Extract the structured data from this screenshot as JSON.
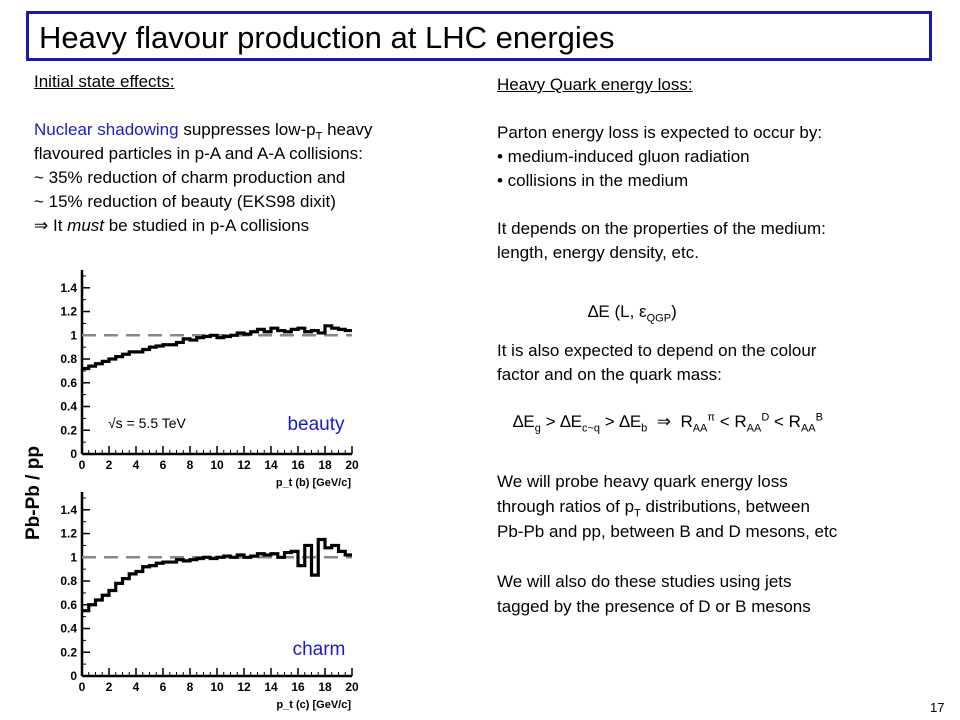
{
  "title": "Heavy flavour production at LHC energies",
  "left": {
    "heading": "Initial state effects:",
    "line1_highlight": "Nuclear shadowing",
    "line1_rest": " suppresses low-p",
    "line1_sub": "T",
    "line1_end": " heavy",
    "line2": "flavoured particles in p-A and A-A collisions:",
    "line3": "~ 35% reduction of charm production and",
    "line4": "~ 15% reduction of beauty (EKS98 dixit)",
    "line5_arrow": "⇒",
    "line5_a": " It ",
    "line5_em": "must",
    "line5_b": " be studied in p-A collisions"
  },
  "right": {
    "heading": "Heavy Quark energy loss:",
    "p1": "Parton energy loss is expected to occur by:",
    "b1": "• medium-induced gluon radiation",
    "b2": "• collisions in the medium",
    "p2a": "It depends on the properties of the medium:",
    "p2b": "length, energy density, etc.",
    "f1_delta": "∆E (L, ",
    "f1_eps": "ε",
    "f1_sub": "QGP",
    "f1_close": ")",
    "p3a": "It is also expected to depend on the colour",
    "p3b": "factor and on the quark mass:",
    "f2": {
      "d1": "∆E",
      "s1": "g",
      "gt1": " > ∆E",
      "s2": "c~q",
      "gt2": " > ∆E",
      "s3": "b",
      "arrow": "  ⇒  ",
      "r1": "R",
      "r1s": "AA",
      "r1p": "π",
      "lt1": " < R",
      "r2s": "AA",
      "r2p": "D",
      "lt2": " < R",
      "r3s": "AA",
      "r3p": "B"
    },
    "p4a": "We will probe heavy quark energy loss",
    "p4b_a": "through ratios of p",
    "p4b_sub": "T",
    "p4b_b": " distributions, between",
    "p4c": "Pb-Pb and pp, between B and D mesons, etc",
    "p5a": "We will also do these studies using jets",
    "p5b": "tagged by the presence of D or B mesons"
  },
  "ylabel": "Pb-Pb / pp",
  "page_number": "17",
  "chart_data": [
    {
      "type": "line",
      "label": "beauty",
      "annotation": "√s = 5.5 TeV",
      "xlabel": "p_t (b) [GeV/c]",
      "x_ticks": [
        "0",
        "2",
        "4",
        "6",
        "8",
        "10",
        "12",
        "14",
        "16",
        "18",
        "20"
      ],
      "y_ticks": [
        "0",
        "0.2",
        "0.4",
        "0.6",
        "0.8",
        "1",
        "1.2",
        "1.4"
      ],
      "xlim": [
        0,
        20
      ],
      "ylim": [
        0,
        1.55
      ],
      "reference_line": 1,
      "bin_width": 0.5,
      "values": [
        0.72,
        0.74,
        0.76,
        0.78,
        0.8,
        0.82,
        0.84,
        0.86,
        0.86,
        0.88,
        0.9,
        0.91,
        0.92,
        0.92,
        0.94,
        0.97,
        0.96,
        0.98,
        0.99,
        1.0,
        0.98,
        0.99,
        1.0,
        1.02,
        1.01,
        1.03,
        1.05,
        1.03,
        1.06,
        1.04,
        1.03,
        1.05,
        1.06,
        1.03,
        1.04,
        1.02,
        1.08,
        1.06,
        1.05,
        1.04
      ]
    },
    {
      "type": "line",
      "label": "charm",
      "xlabel": "p_t (c) [GeV/c]",
      "x_ticks": [
        "0",
        "2",
        "4",
        "6",
        "8",
        "10",
        "12",
        "14",
        "16",
        "18",
        "20"
      ],
      "y_ticks": [
        "0",
        "0.2",
        "0.4",
        "0.6",
        "0.8",
        "1",
        "1.2",
        "1.4"
      ],
      "xlim": [
        0,
        20
      ],
      "ylim": [
        0,
        1.55
      ],
      "reference_line": 1,
      "bin_width": 0.5,
      "values": [
        0.55,
        0.6,
        0.64,
        0.68,
        0.72,
        0.78,
        0.82,
        0.86,
        0.88,
        0.92,
        0.93,
        0.95,
        0.96,
        0.96,
        0.98,
        0.97,
        0.98,
        0.99,
        1.0,
        0.99,
        1.0,
        1.01,
        1.0,
        1.02,
        1.0,
        1.01,
        1.03,
        1.02,
        1.03,
        1.0,
        1.04,
        1.05,
        0.93,
        1.1,
        0.85,
        1.15,
        1.08,
        1.1,
        1.05,
        1.02
      ]
    }
  ]
}
